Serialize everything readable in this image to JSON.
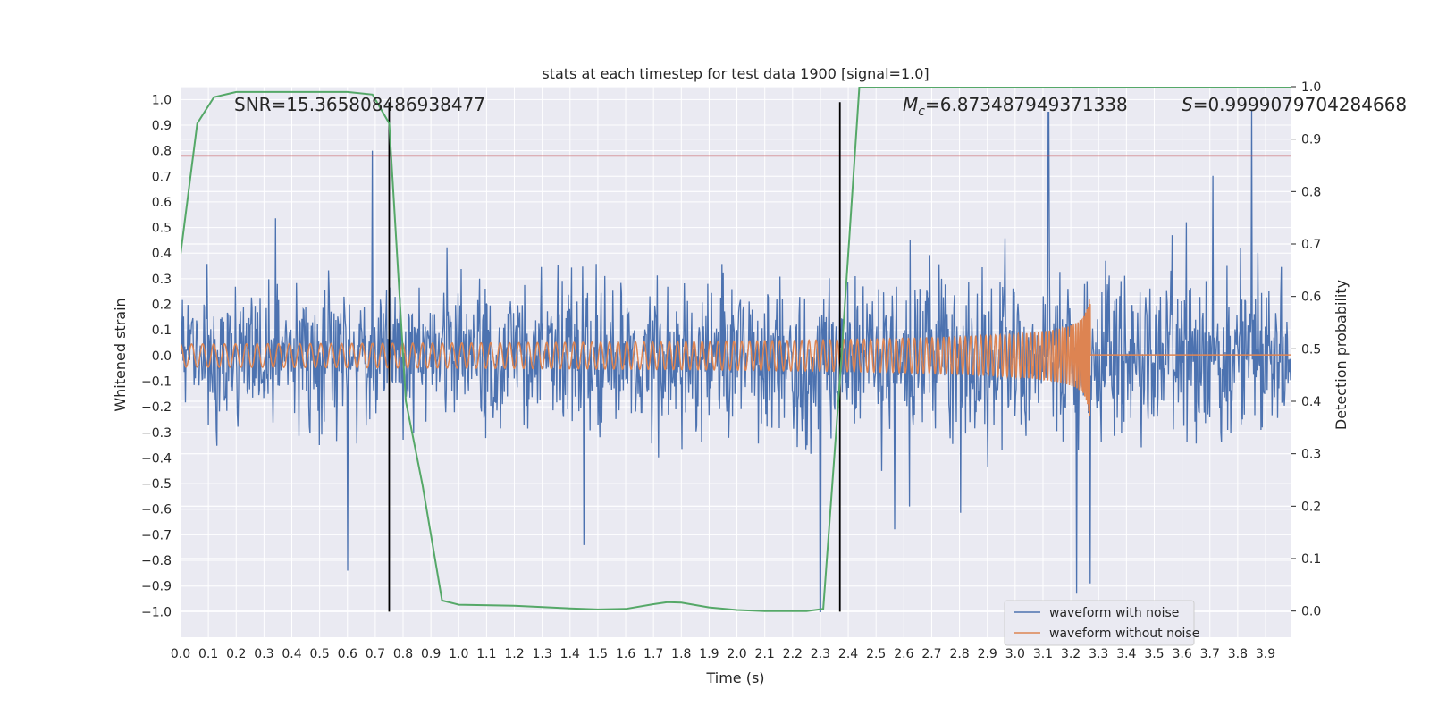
{
  "chart_data": {
    "type": "line",
    "title": "stats at each timestep for test data 1900 [signal=1.0]",
    "xlabel": "Time (s)",
    "ylabel": "Whitened strain",
    "y2label": "Detection probability",
    "xlim": [
      0.0,
      3.99
    ],
    "ylim": [
      -1.1,
      1.05
    ],
    "y2lim": [
      -0.05,
      1.0
    ],
    "grid": true,
    "legend_position": "lower right",
    "xticks": [
      "0.0",
      "0.1",
      "0.2",
      "0.3",
      "0.4",
      "0.5",
      "0.6",
      "0.7",
      "0.8",
      "0.9",
      "1.0",
      "1.1",
      "1.2",
      "1.3",
      "1.4",
      "1.5",
      "1.6",
      "1.7",
      "1.8",
      "1.9",
      "2.0",
      "2.1",
      "2.2",
      "2.3",
      "2.4",
      "2.5",
      "2.6",
      "2.7",
      "2.8",
      "2.9",
      "3.0",
      "3.1",
      "3.2",
      "3.3",
      "3.4",
      "3.5",
      "3.6",
      "3.7",
      "3.8",
      "3.9"
    ],
    "yticks": [
      "1.0",
      "0.9",
      "0.8",
      "0.7",
      "0.6",
      "0.5",
      "0.4",
      "0.3",
      "0.2",
      "0.1",
      "0.0",
      "−0.1",
      "−0.2",
      "−0.3",
      "−0.4",
      "−0.5",
      "−0.6",
      "−0.7",
      "−0.8",
      "−0.9",
      "−1.0"
    ],
    "y2ticks": [
      "1.0",
      "0.9",
      "0.8",
      "0.7",
      "0.6",
      "0.5",
      "0.4",
      "0.3",
      "0.2",
      "0.1",
      "0.0"
    ],
    "annotations": {
      "snr": "SNR=15.365808486938477",
      "mc_symbol": "M",
      "mc_sub": "c",
      "mc_value": "=6.873487949371338",
      "s_symbol": "S",
      "s_value": "=0.9999079704284668"
    },
    "threshold": {
      "y": 0.78,
      "color": "#c44e52"
    },
    "vlines": [
      0.75,
      2.37
    ],
    "series": [
      {
        "name": "waveform with noise",
        "color": "#4c72b0",
        "style": "noise",
        "amplitude_envelope": [
          0.55,
          0.7
        ],
        "extremes": [
          [
            0.6,
            -0.84
          ],
          [
            0.69,
            0.8
          ],
          [
            1.45,
            -0.74
          ],
          [
            2.3,
            -1.0
          ],
          [
            3.12,
            0.95
          ],
          [
            3.22,
            -0.93
          ],
          [
            3.27,
            -0.89
          ],
          [
            3.85,
            0.96
          ]
        ]
      },
      {
        "name": "waveform without noise",
        "color": "#dd8452",
        "style": "chirp",
        "start_amplitude": 0.045,
        "peak_amplitude": 0.42,
        "merger_time": 3.27,
        "start_frequency_hz": 25
      },
      {
        "name": "Detection probability",
        "color": "#55a868",
        "axis": "right",
        "x": [
          0.0,
          0.06,
          0.12,
          0.2,
          0.3,
          0.4,
          0.5,
          0.6,
          0.69,
          0.75,
          0.81,
          0.81,
          0.87,
          0.94,
          1.0,
          1.2,
          1.4,
          1.5,
          1.6,
          1.7,
          1.75,
          1.8,
          1.9,
          2.0,
          2.1,
          2.25,
          2.31,
          2.37,
          2.44,
          2.6,
          2.8,
          3.0,
          3.3,
          3.6,
          3.99
        ],
        "y": [
          0.68,
          0.93,
          0.98,
          0.99,
          0.99,
          0.99,
          0.99,
          0.99,
          0.985,
          0.93,
          0.4,
          0.4,
          0.24,
          0.02,
          0.012,
          0.01,
          0.005,
          0.003,
          0.004,
          0.013,
          0.017,
          0.016,
          0.007,
          0.002,
          0.0,
          0.0,
          0.004,
          0.44,
          1.0,
          1.0,
          1.0,
          1.0,
          1.0,
          1.0,
          1.0
        ]
      }
    ]
  }
}
